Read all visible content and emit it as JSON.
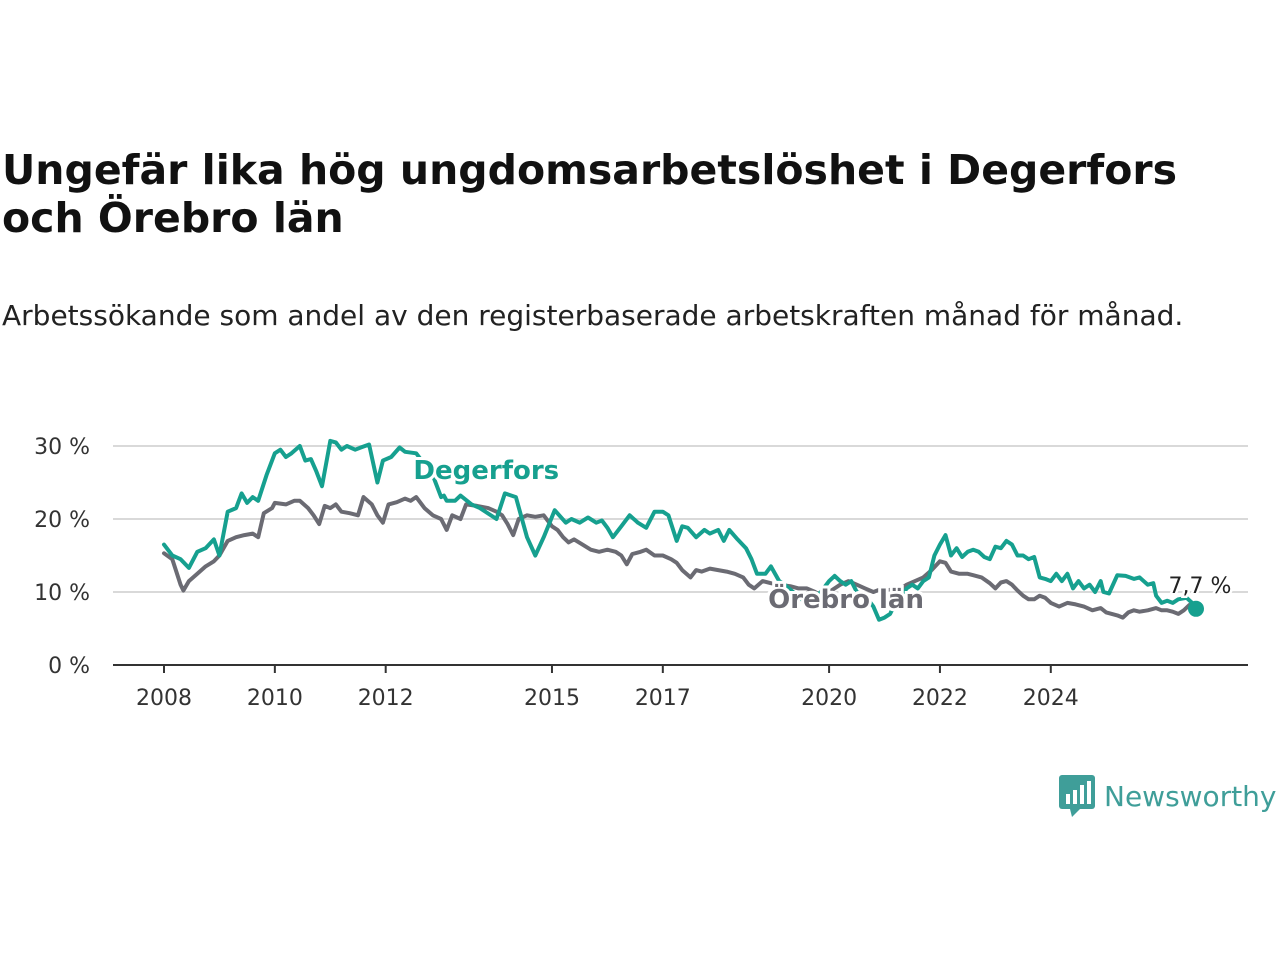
{
  "title": "Ungefär lika hög ungdomsarbetslöshet i Degerfors och Örebro län",
  "subtitle": "Arbetssökande som andel av den registerbaserade arbetskraften månad för månad.",
  "brand": {
    "name": "Newsworthy",
    "color": "#3f9e99",
    "icon": "newsworthy-bar-chart-icon"
  },
  "chart_data": {
    "type": "line",
    "y_ticks": [
      "0 %",
      "10 %",
      "20 %",
      "30 %"
    ],
    "x_ticks": [
      "2008",
      "2010",
      "2012",
      "2015",
      "2017",
      "2020",
      "2022",
      "2024"
    ],
    "ylim": [
      0,
      30
    ],
    "grid": true,
    "end_label": "7,7 %",
    "series": [
      {
        "name": "Degerfors",
        "color": "#16a08f",
        "points": [
          [
            2008.0,
            16.5
          ],
          [
            2008.15,
            15.0
          ],
          [
            2008.3,
            14.5
          ],
          [
            2008.45,
            13.3
          ],
          [
            2008.6,
            15.5
          ],
          [
            2008.75,
            16.0
          ],
          [
            2008.9,
            17.2
          ],
          [
            2009.0,
            15.0
          ],
          [
            2009.15,
            21.0
          ],
          [
            2009.3,
            21.5
          ],
          [
            2009.4,
            23.5
          ],
          [
            2009.5,
            22.2
          ],
          [
            2009.6,
            23.0
          ],
          [
            2009.7,
            22.5
          ],
          [
            2009.85,
            26.0
          ],
          [
            2010.0,
            29.0
          ],
          [
            2010.1,
            29.5
          ],
          [
            2010.2,
            28.5
          ],
          [
            2010.3,
            29.0
          ],
          [
            2010.45,
            30.0
          ],
          [
            2010.55,
            28.0
          ],
          [
            2010.65,
            28.2
          ],
          [
            2010.75,
            26.5
          ],
          [
            2010.85,
            24.5
          ],
          [
            2011.0,
            30.7
          ],
          [
            2011.1,
            30.5
          ],
          [
            2011.2,
            29.5
          ],
          [
            2011.3,
            30.0
          ],
          [
            2011.45,
            29.5
          ],
          [
            2011.55,
            29.8
          ],
          [
            2011.7,
            30.2
          ],
          [
            2011.85,
            25.0
          ],
          [
            2011.95,
            28.0
          ],
          [
            2012.1,
            28.5
          ],
          [
            2012.25,
            29.8
          ],
          [
            2012.35,
            29.2
          ],
          [
            2012.55,
            29.0
          ],
          [
            2012.7,
            27.5
          ],
          [
            2012.8,
            27.0
          ],
          [
            2013.0,
            23.0
          ],
          [
            2013.05,
            23.2
          ],
          [
            2013.1,
            22.5
          ],
          [
            2013.25,
            22.5
          ],
          [
            2013.35,
            23.2
          ],
          [
            2013.55,
            22.0
          ],
          [
            2013.7,
            21.5
          ],
          [
            2014.0,
            20.0
          ],
          [
            2014.15,
            23.5
          ],
          [
            2014.35,
            23.0
          ],
          [
            2014.55,
            17.5
          ],
          [
            2014.7,
            15.0
          ],
          [
            2014.85,
            17.5
          ],
          [
            2015.05,
            21.2
          ],
          [
            2015.25,
            19.5
          ],
          [
            2015.35,
            20.0
          ],
          [
            2015.5,
            19.5
          ],
          [
            2015.65,
            20.2
          ],
          [
            2015.8,
            19.5
          ],
          [
            2015.9,
            19.8
          ],
          [
            2016.0,
            18.8
          ],
          [
            2016.1,
            17.5
          ],
          [
            2016.25,
            19.0
          ],
          [
            2016.4,
            20.5
          ],
          [
            2016.55,
            19.5
          ],
          [
            2016.7,
            18.8
          ],
          [
            2016.85,
            21.0
          ],
          [
            2017.0,
            21.0
          ],
          [
            2017.1,
            20.5
          ],
          [
            2017.25,
            17.0
          ],
          [
            2017.35,
            19.0
          ],
          [
            2017.45,
            18.8
          ],
          [
            2017.6,
            17.5
          ],
          [
            2017.75,
            18.5
          ],
          [
            2017.85,
            18.0
          ],
          [
            2018.0,
            18.5
          ],
          [
            2018.1,
            17.0
          ],
          [
            2018.2,
            18.5
          ],
          [
            2018.35,
            17.2
          ],
          [
            2018.5,
            16.0
          ],
          [
            2018.6,
            14.5
          ],
          [
            2018.7,
            12.5
          ],
          [
            2018.85,
            12.5
          ],
          [
            2018.95,
            13.5
          ],
          [
            2019.1,
            11.5
          ],
          [
            2019.2,
            11.0
          ],
          [
            2019.5,
            9.0
          ],
          [
            2019.7,
            9.0
          ],
          [
            2019.85,
            10.0
          ],
          [
            2020.0,
            11.5
          ],
          [
            2020.1,
            12.2
          ],
          [
            2020.2,
            11.5
          ],
          [
            2020.3,
            11.0
          ],
          [
            2020.4,
            11.5
          ],
          [
            2020.5,
            10.0
          ],
          [
            2020.65,
            9.5
          ],
          [
            2020.8,
            8.0
          ],
          [
            2020.9,
            6.2
          ],
          [
            2021.0,
            6.5
          ],
          [
            2021.1,
            7.0
          ],
          [
            2021.2,
            8.5
          ],
          [
            2021.3,
            9.5
          ],
          [
            2021.4,
            10.5
          ],
          [
            2021.5,
            11.0
          ],
          [
            2021.6,
            10.5
          ],
          [
            2021.7,
            11.5
          ],
          [
            2021.8,
            12.0
          ],
          [
            2021.9,
            15.0
          ],
          [
            2022.0,
            16.5
          ],
          [
            2022.1,
            17.8
          ],
          [
            2022.2,
            15.0
          ],
          [
            2022.3,
            16.0
          ],
          [
            2022.4,
            14.8
          ],
          [
            2022.5,
            15.5
          ],
          [
            2022.6,
            15.8
          ],
          [
            2022.7,
            15.5
          ],
          [
            2022.8,
            14.8
          ],
          [
            2022.9,
            14.5
          ],
          [
            2023.0,
            16.2
          ],
          [
            2023.1,
            16.0
          ],
          [
            2023.2,
            17.0
          ],
          [
            2023.3,
            16.5
          ],
          [
            2023.4,
            15.0
          ],
          [
            2023.5,
            15.0
          ],
          [
            2023.6,
            14.5
          ],
          [
            2023.7,
            14.8
          ],
          [
            2023.8,
            12.0
          ],
          [
            2023.9,
            11.8
          ],
          [
            2024.0,
            11.5
          ],
          [
            2024.1,
            12.5
          ],
          [
            2024.2,
            11.5
          ],
          [
            2024.3,
            12.5
          ],
          [
            2024.4,
            10.5
          ],
          [
            2024.5,
            11.5
          ],
          [
            2024.6,
            10.5
          ],
          [
            2024.7,
            11.0
          ],
          [
            2024.8,
            10.0
          ],
          [
            2024.9,
            11.5
          ],
          [
            2024.95,
            10.0
          ],
          [
            2025.05,
            9.8
          ],
          [
            2025.2,
            12.3
          ],
          [
            2025.35,
            12.2
          ],
          [
            2025.5,
            11.8
          ],
          [
            2025.6,
            12.0
          ],
          [
            2025.75,
            11.0
          ],
          [
            2025.85,
            11.2
          ],
          [
            2025.9,
            9.5
          ],
          [
            2026.0,
            8.5
          ],
          [
            2026.1,
            8.8
          ],
          [
            2026.2,
            8.5
          ],
          [
            2026.3,
            9.0
          ],
          [
            2026.45,
            9.2
          ],
          [
            2026.55,
            8.5
          ],
          [
            2026.62,
            7.7
          ]
        ]
      },
      {
        "name": "Örebro län",
        "color": "#6b6b73",
        "points": [
          [
            2008.0,
            15.3
          ],
          [
            2008.15,
            14.5
          ],
          [
            2008.3,
            11.0
          ],
          [
            2008.35,
            10.2
          ],
          [
            2008.45,
            11.5
          ],
          [
            2008.6,
            12.5
          ],
          [
            2008.75,
            13.5
          ],
          [
            2008.9,
            14.2
          ],
          [
            2009.0,
            15.0
          ],
          [
            2009.15,
            17.0
          ],
          [
            2009.3,
            17.5
          ],
          [
            2009.45,
            17.8
          ],
          [
            2009.6,
            18.0
          ],
          [
            2009.7,
            17.5
          ],
          [
            2009.8,
            20.8
          ],
          [
            2009.95,
            21.5
          ],
          [
            2010.0,
            22.2
          ],
          [
            2010.2,
            22.0
          ],
          [
            2010.35,
            22.5
          ],
          [
            2010.45,
            22.5
          ],
          [
            2010.6,
            21.5
          ],
          [
            2010.7,
            20.5
          ],
          [
            2010.8,
            19.3
          ],
          [
            2010.9,
            21.8
          ],
          [
            2011.0,
            21.5
          ],
          [
            2011.1,
            22.0
          ],
          [
            2011.2,
            21.0
          ],
          [
            2011.35,
            20.8
          ],
          [
            2011.5,
            20.5
          ],
          [
            2011.6,
            23.0
          ],
          [
            2011.75,
            22.0
          ],
          [
            2011.85,
            20.5
          ],
          [
            2011.95,
            19.5
          ],
          [
            2012.05,
            22.0
          ],
          [
            2012.2,
            22.3
          ],
          [
            2012.35,
            22.8
          ],
          [
            2012.45,
            22.5
          ],
          [
            2012.55,
            23.0
          ],
          [
            2012.7,
            21.5
          ],
          [
            2012.85,
            20.5
          ],
          [
            2013.0,
            20.0
          ],
          [
            2013.1,
            18.5
          ],
          [
            2013.2,
            20.5
          ],
          [
            2013.35,
            20.0
          ],
          [
            2013.45,
            22.0
          ],
          [
            2013.65,
            21.8
          ],
          [
            2013.85,
            21.5
          ],
          [
            2014.0,
            21.0
          ],
          [
            2014.1,
            20.5
          ],
          [
            2014.2,
            19.3
          ],
          [
            2014.3,
            17.8
          ],
          [
            2014.4,
            20.0
          ],
          [
            2014.55,
            20.5
          ],
          [
            2014.7,
            20.3
          ],
          [
            2014.85,
            20.5
          ],
          [
            2015.0,
            19.0
          ],
          [
            2015.1,
            18.5
          ],
          [
            2015.2,
            17.5
          ],
          [
            2015.3,
            16.8
          ],
          [
            2015.4,
            17.2
          ],
          [
            2015.55,
            16.5
          ],
          [
            2015.7,
            15.8
          ],
          [
            2015.85,
            15.5
          ],
          [
            2016.0,
            15.8
          ],
          [
            2016.15,
            15.5
          ],
          [
            2016.25,
            15.0
          ],
          [
            2016.35,
            13.8
          ],
          [
            2016.45,
            15.2
          ],
          [
            2016.6,
            15.5
          ],
          [
            2016.7,
            15.8
          ],
          [
            2016.85,
            15.0
          ],
          [
            2017.0,
            15.0
          ],
          [
            2017.15,
            14.5
          ],
          [
            2017.25,
            14.0
          ],
          [
            2017.35,
            13.0
          ],
          [
            2017.5,
            12.0
          ],
          [
            2017.6,
            13.0
          ],
          [
            2017.7,
            12.8
          ],
          [
            2017.85,
            13.2
          ],
          [
            2018.0,
            13.0
          ],
          [
            2018.15,
            12.8
          ],
          [
            2018.3,
            12.5
          ],
          [
            2018.45,
            12.0
          ],
          [
            2018.55,
            11.0
          ],
          [
            2018.65,
            10.5
          ],
          [
            2018.8,
            11.5
          ],
          [
            2018.95,
            11.2
          ],
          [
            2019.1,
            11.0
          ],
          [
            2019.3,
            10.8
          ],
          [
            2019.45,
            10.5
          ],
          [
            2019.6,
            10.5
          ],
          [
            2019.75,
            10.0
          ],
          [
            2019.85,
            9.5
          ],
          [
            2020.0,
            10.0
          ],
          [
            2020.2,
            11.0
          ],
          [
            2020.35,
            11.5
          ],
          [
            2020.5,
            11.0
          ],
          [
            2020.65,
            10.5
          ],
          [
            2020.8,
            10.0
          ],
          [
            2020.9,
            10.3
          ],
          [
            2021.0,
            10.2
          ],
          [
            2021.1,
            10.3
          ],
          [
            2021.2,
            10.0
          ],
          [
            2021.4,
            11.0
          ],
          [
            2021.55,
            11.5
          ],
          [
            2021.7,
            12.0
          ],
          [
            2021.85,
            13.0
          ],
          [
            2022.0,
            14.2
          ],
          [
            2022.1,
            14.0
          ],
          [
            2022.2,
            12.8
          ],
          [
            2022.35,
            12.5
          ],
          [
            2022.5,
            12.5
          ],
          [
            2022.6,
            12.3
          ],
          [
            2022.75,
            12.0
          ],
          [
            2022.9,
            11.2
          ],
          [
            2023.0,
            10.5
          ],
          [
            2023.1,
            11.3
          ],
          [
            2023.2,
            11.5
          ],
          [
            2023.3,
            11.0
          ],
          [
            2023.4,
            10.2
          ],
          [
            2023.5,
            9.5
          ],
          [
            2023.6,
            9.0
          ],
          [
            2023.7,
            9.0
          ],
          [
            2023.8,
            9.5
          ],
          [
            2023.9,
            9.2
          ],
          [
            2024.0,
            8.5
          ],
          [
            2024.15,
            8.0
          ],
          [
            2024.3,
            8.5
          ],
          [
            2024.45,
            8.3
          ],
          [
            2024.6,
            8.0
          ],
          [
            2024.75,
            7.5
          ],
          [
            2024.9,
            7.8
          ],
          [
            2025.0,
            7.2
          ],
          [
            2025.1,
            7.0
          ],
          [
            2025.2,
            6.8
          ],
          [
            2025.3,
            6.5
          ],
          [
            2025.4,
            7.2
          ],
          [
            2025.5,
            7.5
          ],
          [
            2025.6,
            7.3
          ],
          [
            2025.75,
            7.5
          ],
          [
            2025.9,
            7.8
          ],
          [
            2026.0,
            7.5
          ],
          [
            2026.1,
            7.5
          ],
          [
            2026.2,
            7.3
          ],
          [
            2026.3,
            7.0
          ],
          [
            2026.4,
            7.5
          ],
          [
            2026.5,
            8.2
          ],
          [
            2026.62,
            7.7
          ]
        ]
      }
    ]
  }
}
